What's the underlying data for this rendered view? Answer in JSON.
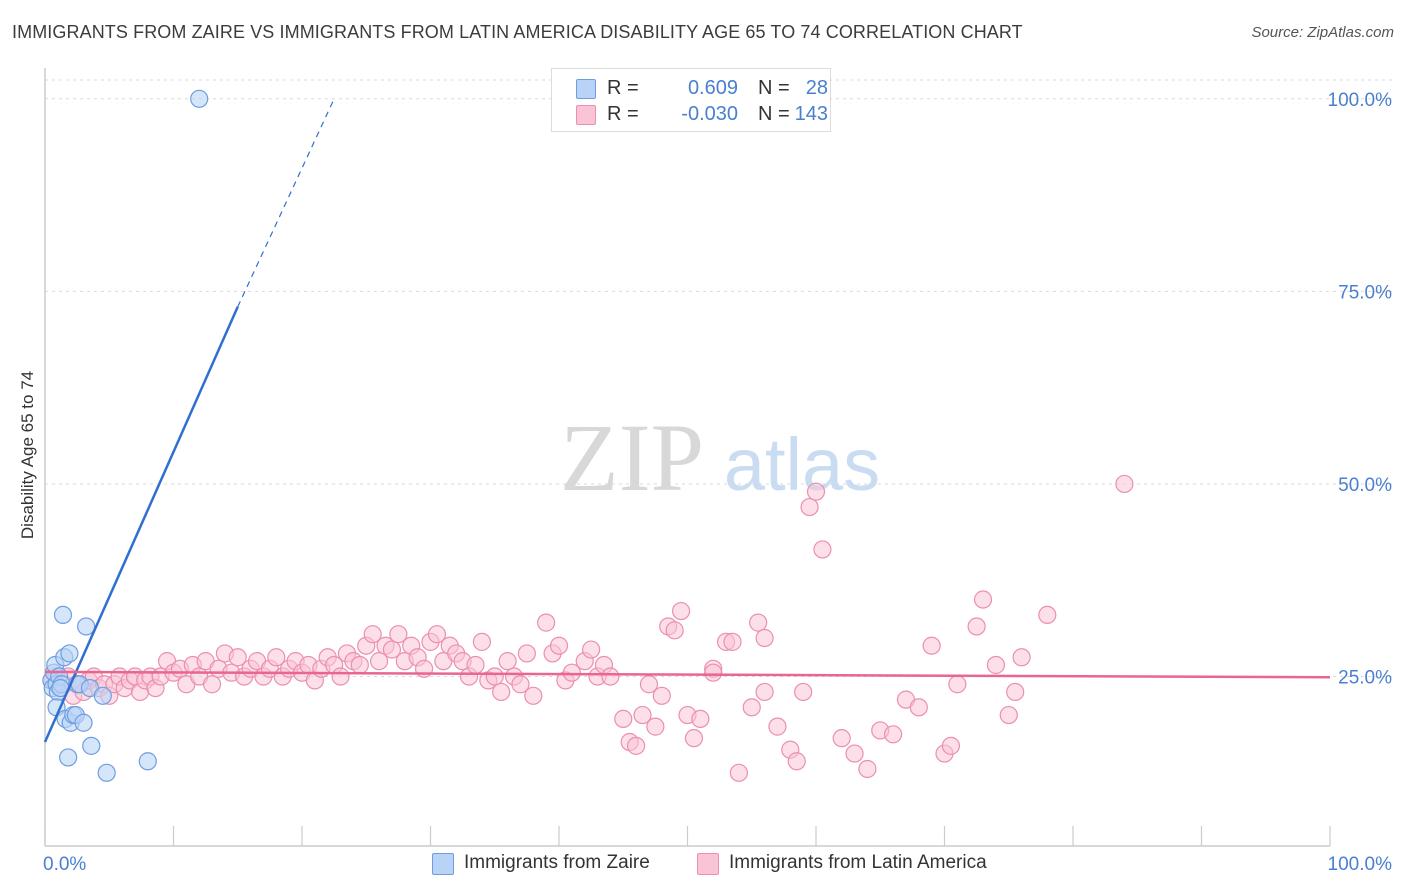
{
  "title": "IMMIGRANTS FROM ZAIRE VS IMMIGRANTS FROM LATIN AMERICA DISABILITY AGE 65 TO 74 CORRELATION CHART",
  "source": "Source: ZipAtlas.com",
  "watermark": {
    "zip": "ZIP",
    "atlas": "atlas"
  },
  "legend": {
    "rows": [
      {
        "r_label": "R =",
        "r_value": "0.609",
        "n_label": "N =",
        "n_value": "28",
        "color": "#b9d3f6"
      },
      {
        "r_label": "R =",
        "r_value": "-0.030",
        "n_label": "N =",
        "n_value": "143",
        "color": "#f9c4d6"
      }
    ]
  },
  "bottom_legend": [
    {
      "label": "Immigrants from Zaire",
      "color": "#b9d3f6"
    },
    {
      "label": "Immigrants from Latin America",
      "color": "#f9c4d6"
    }
  ],
  "chart_data": {
    "type": "scatter",
    "title": "IMMIGRANTS FROM ZAIRE VS IMMIGRANTS FROM LATIN AMERICA DISABILITY AGE 65 TO 74 CORRELATION CHART",
    "xlabel": "",
    "ylabel": "Disability Age 65 to 74",
    "xlim": [
      0,
      100
    ],
    "ylim": [
      3,
      104
    ],
    "x_tick_labels": {
      "left": "0.0%",
      "right": "100.0%"
    },
    "y_ticks": [
      {
        "value": 100,
        "label": "100.0%"
      },
      {
        "value": 75,
        "label": "75.0%"
      },
      {
        "value": 50,
        "label": "50.0%"
      },
      {
        "value": 25,
        "label": "25.0%"
      }
    ],
    "colors": {
      "zaire_fill": "#b9d3f6",
      "zaire_edge": "#6f9ee0",
      "zaire_line": "#2f6fcf",
      "latam_fill": "#f9c4d6",
      "latam_edge": "#eb8fb0",
      "latam_line": "#e8668f",
      "tick_label": "#4a7fd0"
    },
    "series": [
      {
        "name": "Immigrants from Zaire",
        "trend": {
          "x0": 0,
          "y0": 16.5,
          "x1": 15,
          "y1": 73,
          "dashed_to_x": 22.5,
          "dashed_to_y": 100
        },
        "points": [
          [
            0.5,
            24.5
          ],
          [
            0.6,
            23.5
          ],
          [
            0.7,
            25.5
          ],
          [
            0.8,
            26.5
          ],
          [
            0.9,
            24
          ],
          [
            1.0,
            23
          ],
          [
            1.1,
            25
          ],
          [
            0.9,
            21
          ],
          [
            1.3,
            24
          ],
          [
            1.5,
            27.5
          ],
          [
            1.4,
            33
          ],
          [
            1.6,
            19.5
          ],
          [
            1.8,
            14.5
          ],
          [
            1.9,
            28
          ],
          [
            2.0,
            19
          ],
          [
            2.2,
            20
          ],
          [
            2.4,
            20
          ],
          [
            2.5,
            24
          ],
          [
            2.7,
            24
          ],
          [
            3.0,
            19
          ],
          [
            3.2,
            31.5
          ],
          [
            3.5,
            23.5
          ],
          [
            3.6,
            16
          ],
          [
            4.5,
            22.5
          ],
          [
            4.8,
            12.5
          ],
          [
            8.0,
            14
          ],
          [
            12.0,
            100
          ],
          [
            1.2,
            23.5
          ]
        ]
      },
      {
        "name": "Immigrants from Latin America",
        "trend": {
          "x0": 0,
          "y0": 25.6,
          "x1": 100,
          "y1": 24.9
        },
        "points": [
          [
            0.5,
            24.5
          ],
          [
            0.9,
            25
          ],
          [
            1.2,
            23.5
          ],
          [
            1.5,
            24
          ],
          [
            1.8,
            25
          ],
          [
            2.2,
            22.5
          ],
          [
            2.6,
            24
          ],
          [
            3.0,
            23
          ],
          [
            3.4,
            24.5
          ],
          [
            3.8,
            25
          ],
          [
            4.2,
            23.5
          ],
          [
            4.6,
            24
          ],
          [
            5.0,
            22.5
          ],
          [
            5.4,
            24
          ],
          [
            5.8,
            25
          ],
          [
            6.2,
            23.5
          ],
          [
            6.6,
            24.5
          ],
          [
            7.0,
            25
          ],
          [
            7.4,
            23
          ],
          [
            7.8,
            24.5
          ],
          [
            8.2,
            25
          ],
          [
            8.6,
            23.5
          ],
          [
            9.0,
            25
          ],
          [
            9.5,
            27
          ],
          [
            10.0,
            25.5
          ],
          [
            10.5,
            26
          ],
          [
            11.0,
            24
          ],
          [
            11.5,
            26.5
          ],
          [
            12.0,
            25
          ],
          [
            12.5,
            27
          ],
          [
            13.0,
            24
          ],
          [
            13.5,
            26
          ],
          [
            14.0,
            28
          ],
          [
            14.5,
            25.5
          ],
          [
            15.0,
            27.5
          ],
          [
            15.5,
            25
          ],
          [
            16.0,
            26
          ],
          [
            16.5,
            27
          ],
          [
            17.0,
            25
          ],
          [
            17.5,
            26
          ],
          [
            18.0,
            27.5
          ],
          [
            18.5,
            25
          ],
          [
            19.0,
            26
          ],
          [
            19.5,
            27
          ],
          [
            20.0,
            25.5
          ],
          [
            20.5,
            26.5
          ],
          [
            21.0,
            24.5
          ],
          [
            21.5,
            26
          ],
          [
            22.0,
            27.5
          ],
          [
            22.5,
            26.5
          ],
          [
            23.0,
            25
          ],
          [
            23.5,
            28
          ],
          [
            24.0,
            27
          ],
          [
            24.5,
            26.5
          ],
          [
            25.0,
            29
          ],
          [
            25.5,
            30.5
          ],
          [
            26.0,
            27
          ],
          [
            26.5,
            29
          ],
          [
            27.0,
            28.5
          ],
          [
            27.5,
            30.5
          ],
          [
            28.0,
            27
          ],
          [
            28.5,
            29
          ],
          [
            29.0,
            27.5
          ],
          [
            29.5,
            26
          ],
          [
            30.0,
            29.5
          ],
          [
            30.5,
            30.5
          ],
          [
            31.0,
            27
          ],
          [
            31.5,
            29
          ],
          [
            32.0,
            28
          ],
          [
            32.5,
            27
          ],
          [
            33.0,
            25
          ],
          [
            33.5,
            26.5
          ],
          [
            34.0,
            29.5
          ],
          [
            34.5,
            24.5
          ],
          [
            35.0,
            25
          ],
          [
            35.5,
            23
          ],
          [
            36.0,
            27
          ],
          [
            36.5,
            25
          ],
          [
            37.0,
            24
          ],
          [
            37.5,
            28
          ],
          [
            38.0,
            22.5
          ],
          [
            39.0,
            32
          ],
          [
            39.5,
            28
          ],
          [
            40.0,
            29
          ],
          [
            40.5,
            24.5
          ],
          [
            41.0,
            25.5
          ],
          [
            42.0,
            27
          ],
          [
            42.5,
            28.5
          ],
          [
            43.0,
            25
          ],
          [
            43.5,
            26.5
          ],
          [
            44.0,
            25
          ],
          [
            45.0,
            19.5
          ],
          [
            45.5,
            16.5
          ],
          [
            46.0,
            16
          ],
          [
            46.5,
            20
          ],
          [
            47.0,
            24
          ],
          [
            47.5,
            18.5
          ],
          [
            48.0,
            22.5
          ],
          [
            48.5,
            31.5
          ],
          [
            49.0,
            31
          ],
          [
            49.5,
            33.5
          ],
          [
            50.0,
            20
          ],
          [
            50.5,
            17
          ],
          [
            51.0,
            19.5
          ],
          [
            52.0,
            26
          ],
          [
            53.0,
            29.5
          ],
          [
            53.5,
            29.5
          ],
          [
            54.0,
            12.5
          ],
          [
            55.0,
            21
          ],
          [
            55.5,
            32
          ],
          [
            56.0,
            23
          ],
          [
            57.0,
            18.5
          ],
          [
            58.0,
            15.5
          ],
          [
            58.5,
            14
          ],
          [
            59.0,
            23
          ],
          [
            59.5,
            47
          ],
          [
            60.0,
            49
          ],
          [
            60.5,
            41.5
          ],
          [
            62.0,
            17
          ],
          [
            63.0,
            15
          ],
          [
            64.0,
            13
          ],
          [
            65.0,
            18
          ],
          [
            66.0,
            17.5
          ],
          [
            67.0,
            22
          ],
          [
            68.0,
            21
          ],
          [
            69.0,
            29
          ],
          [
            70.0,
            15
          ],
          [
            70.5,
            16
          ],
          [
            71.0,
            24
          ],
          [
            72.5,
            31.5
          ],
          [
            73.0,
            35
          ],
          [
            74.0,
            26.5
          ],
          [
            75.0,
            20
          ],
          [
            75.5,
            23
          ],
          [
            76.0,
            27.5
          ],
          [
            78.0,
            33
          ],
          [
            84.0,
            50
          ],
          [
            56.0,
            30
          ],
          [
            52.0,
            25.5
          ]
        ]
      }
    ]
  }
}
